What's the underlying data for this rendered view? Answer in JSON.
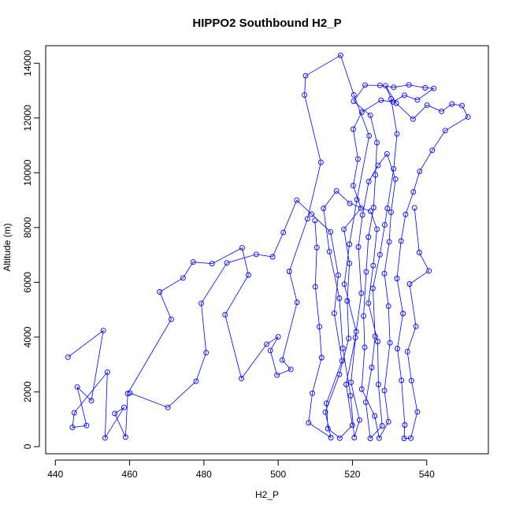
{
  "chart_data": {
    "type": "scatter",
    "title": "HIPPO2 Southbound H2_P",
    "xlabel": "H2_P",
    "ylabel": "Altitude (m)",
    "xlim": [
      437.4,
      556.6
    ],
    "ylim": [
      -260,
      14640
    ],
    "x_ticks": [
      440,
      460,
      480,
      500,
      520,
      540
    ],
    "y_ticks": [
      0,
      2000,
      4000,
      6000,
      8000,
      10000,
      12000,
      14000
    ],
    "grid": false,
    "marker": "open-circle",
    "connected": true,
    "series_color": "#0000ff",
    "series": [
      {
        "values": [
          [
            443.4,
            3270
          ],
          [
            452.9,
            4240
          ],
          [
            449.7,
            1680
          ],
          [
            445.9,
            2180
          ],
          [
            448.4,
            770
          ],
          [
            444.6,
            700
          ],
          [
            445.1,
            1240
          ],
          [
            454.0,
            2720
          ],
          [
            453.4,
            320
          ],
          [
            458.5,
            1430
          ],
          [
            456.0,
            1210
          ],
          [
            458.9,
            350
          ],
          [
            459.5,
            1940
          ],
          [
            471.2,
            4650
          ],
          [
            468.1,
            5650
          ],
          [
            474.4,
            6160
          ],
          [
            477.1,
            6740
          ],
          [
            482.2,
            6680
          ],
          [
            490.3,
            7260
          ],
          [
            492.0,
            6270
          ],
          [
            485.7,
            4820
          ],
          [
            490.1,
            2490
          ],
          [
            496.9,
            3740
          ],
          [
            500.0,
            4010
          ],
          [
            497.9,
            3510
          ],
          [
            499.7,
            2610
          ],
          [
            503.4,
            2820
          ],
          [
            501.1,
            3160
          ],
          [
            505.1,
            5270
          ],
          [
            503.0,
            6400
          ],
          [
            507.9,
            8320
          ],
          [
            511.5,
            10380
          ],
          [
            507.1,
            12840
          ],
          [
            507.4,
            13540
          ],
          [
            516.8,
            14290
          ],
          [
            520.4,
            12840
          ],
          [
            524.5,
            11350
          ],
          [
            521.2,
            9020
          ],
          [
            519.2,
            7390
          ],
          [
            517.8,
            5930
          ],
          [
            521.0,
            4200
          ],
          [
            519.6,
            2350
          ],
          [
            521.9,
            970
          ],
          [
            520.5,
            330
          ],
          [
            519.5,
            1860
          ],
          [
            517.4,
            3590
          ],
          [
            516.5,
            5420
          ],
          [
            513.8,
            7120
          ],
          [
            512.2,
            8700
          ],
          [
            515.7,
            9340
          ],
          [
            519.3,
            8880
          ],
          [
            524.9,
            8600
          ],
          [
            526.6,
            7940
          ],
          [
            525.6,
            6610
          ],
          [
            524.3,
            5240
          ],
          [
            526.8,
            3840
          ],
          [
            527.0,
            2270
          ],
          [
            528.0,
            760
          ],
          [
            524.8,
            300
          ],
          [
            523.6,
            1620
          ],
          [
            525.2,
            2890
          ],
          [
            526.1,
            4030
          ],
          [
            525.5,
            5780
          ],
          [
            527.4,
            7010
          ],
          [
            528.7,
            8100
          ],
          [
            529.4,
            8700
          ],
          [
            531.1,
            10140
          ],
          [
            532.0,
            11420
          ],
          [
            530.4,
            12700
          ],
          [
            528.9,
            13180
          ],
          [
            531.8,
            12540
          ],
          [
            536.3,
            11960
          ],
          [
            540.1,
            12470
          ],
          [
            544.0,
            12240
          ],
          [
            546.8,
            12510
          ],
          [
            549.5,
            12450
          ],
          [
            551.1,
            12040
          ],
          [
            545.0,
            11540
          ],
          [
            541.5,
            10820
          ],
          [
            538.1,
            10050
          ],
          [
            536.4,
            9300
          ],
          [
            534.3,
            8480
          ],
          [
            533.1,
            7510
          ],
          [
            532.0,
            6140
          ],
          [
            533.6,
            4860
          ],
          [
            532.1,
            3580
          ],
          [
            533.2,
            2420
          ],
          [
            534.1,
            790
          ],
          [
            533.9,
            300
          ],
          [
            535.7,
            310
          ],
          [
            537.5,
            1270
          ],
          [
            535.9,
            2410
          ],
          [
            534.8,
            3470
          ],
          [
            537.1,
            4390
          ],
          [
            535.4,
            5940
          ],
          [
            540.6,
            6420
          ],
          [
            538.0,
            7090
          ],
          [
            536.7,
            8720
          ]
        ]
      },
      {
        "values": [
          [
            460.1,
            1960
          ],
          [
            470.3,
            1430
          ],
          [
            477.9,
            2390
          ],
          [
            480.6,
            3430
          ],
          [
            479.3,
            5230
          ],
          [
            486.2,
            6710
          ],
          [
            494.1,
            7020
          ],
          [
            498.5,
            6930
          ],
          [
            501.4,
            7820
          ],
          [
            505.0,
            9000
          ],
          [
            509.0,
            8490
          ],
          [
            514.1,
            7840
          ],
          [
            516.2,
            6260
          ],
          [
            515.1,
            4870
          ],
          [
            517.2,
            3130
          ],
          [
            513.0,
            1580
          ],
          [
            513.4,
            660
          ],
          [
            516.6,
            310
          ],
          [
            520.0,
            780
          ],
          [
            518.3,
            2270
          ],
          [
            520.8,
            3980
          ],
          [
            522.4,
            5600
          ],
          [
            521.6,
            7290
          ],
          [
            522.7,
            8460
          ],
          [
            524.4,
            9680
          ],
          [
            526.9,
            10270
          ],
          [
            529.3,
            10690
          ],
          [
            531.6,
            9770
          ],
          [
            530.4,
            8560
          ],
          [
            529.9,
            7480
          ],
          [
            528.6,
            6320
          ],
          [
            529.7,
            5130
          ],
          [
            530.1,
            3790
          ],
          [
            528.6,
            2050
          ],
          [
            529.7,
            910
          ],
          [
            527.2,
            310
          ],
          [
            526.0,
            1120
          ],
          [
            522.5,
            2100
          ],
          [
            523.3,
            3630
          ],
          [
            523.0,
            4770
          ],
          [
            523.7,
            6380
          ],
          [
            524.3,
            7650
          ],
          [
            525.7,
            8730
          ],
          [
            526.2,
            9920
          ],
          [
            526.6,
            11100
          ],
          [
            524.8,
            12100
          ],
          [
            520.3,
            12610
          ],
          [
            523.4,
            13200
          ],
          [
            527.4,
            13190
          ],
          [
            531.1,
            13120
          ],
          [
            535.2,
            13210
          ],
          [
            539.6,
            13100
          ],
          [
            541.9,
            13080
          ],
          [
            537.5,
            12660
          ],
          [
            534.0,
            12830
          ],
          [
            530.9,
            12590
          ],
          [
            527.7,
            12650
          ],
          [
            522.5,
            12210
          ],
          [
            520.2,
            11590
          ],
          [
            521.5,
            10500
          ],
          [
            520.2,
            9530
          ],
          [
            522.3,
            8710
          ],
          [
            517.7,
            7940
          ],
          [
            519.2,
            6690
          ],
          [
            518.6,
            5320
          ],
          [
            519.0,
            3950
          ],
          [
            516.5,
            2640
          ],
          [
            512.7,
            1260
          ],
          [
            514.2,
            330
          ],
          [
            508.2,
            870
          ],
          [
            509.2,
            1950
          ],
          [
            511.7,
            3250
          ],
          [
            511.1,
            4380
          ],
          [
            510.0,
            5840
          ],
          [
            510.4,
            7270
          ],
          [
            509.9,
            8260
          ]
        ]
      }
    ]
  }
}
